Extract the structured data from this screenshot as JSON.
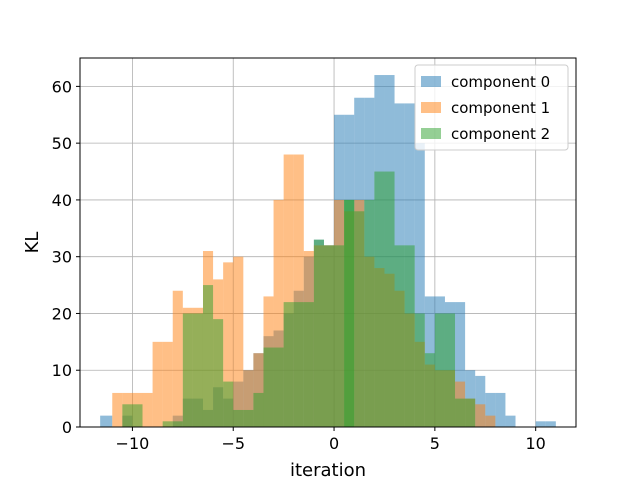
{
  "chart_data": {
    "type": "histogram",
    "xlabel": "iteration",
    "ylabel": "KL",
    "xlim": [
      -12.6,
      12.0
    ],
    "ylim": [
      0,
      65
    ],
    "xticks": [
      -10,
      -5,
      0,
      5,
      10
    ],
    "xtick_labels": [
      "−10",
      "−5",
      "0",
      "5",
      "10"
    ],
    "yticks": [
      0,
      10,
      20,
      30,
      40,
      50,
      60
    ],
    "ytick_labels": [
      "0",
      "10",
      "20",
      "30",
      "40",
      "50",
      "60"
    ],
    "grid": true,
    "legend_position": "top-right",
    "series": [
      {
        "name": "component 0",
        "color": "#1f77b4",
        "alpha": 0.5,
        "bins": [
          [
            -11.6,
            -11.0,
            2
          ],
          [
            -11.0,
            -10.5,
            0
          ],
          [
            -10.5,
            -10.0,
            2
          ],
          [
            -10.0,
            -9.5,
            0
          ],
          [
            -9.5,
            -9.0,
            0
          ],
          [
            -9.0,
            -8.5,
            0
          ],
          [
            -8.5,
            -8.0,
            0
          ],
          [
            -8.0,
            -7.5,
            2
          ],
          [
            -7.5,
            -7.0,
            5
          ],
          [
            -7.0,
            -6.5,
            5
          ],
          [
            -6.5,
            -6.0,
            3
          ],
          [
            -6.0,
            -5.5,
            7
          ],
          [
            -5.5,
            -5.0,
            5
          ],
          [
            -5.0,
            -4.5,
            8
          ],
          [
            -4.5,
            -4.0,
            10
          ],
          [
            -4.0,
            -3.5,
            13
          ],
          [
            -3.5,
            -3.0,
            16
          ],
          [
            -3.0,
            -2.5,
            17
          ],
          [
            -2.5,
            -2.0,
            20
          ],
          [
            -2.0,
            -1.5,
            24
          ],
          [
            -1.5,
            -1.0,
            30
          ],
          [
            -1.0,
            -0.5,
            33
          ],
          [
            -0.5,
            0.0,
            32
          ],
          [
            0.0,
            0.5,
            55
          ],
          [
            0.5,
            1.0,
            55
          ],
          [
            1.0,
            1.5,
            58
          ],
          [
            1.5,
            2.0,
            58
          ],
          [
            2.0,
            2.5,
            62
          ],
          [
            2.5,
            3.0,
            62
          ],
          [
            3.0,
            3.5,
            57
          ],
          [
            3.5,
            4.0,
            57
          ],
          [
            4.0,
            4.5,
            50
          ],
          [
            4.5,
            5.0,
            23
          ],
          [
            5.0,
            5.5,
            23
          ],
          [
            5.5,
            6.0,
            22
          ],
          [
            6.0,
            6.5,
            22
          ],
          [
            6.5,
            7.0,
            10
          ],
          [
            7.0,
            7.5,
            9
          ],
          [
            7.5,
            8.0,
            6
          ],
          [
            8.0,
            8.5,
            6
          ],
          [
            8.5,
            9.0,
            2
          ],
          [
            9.0,
            9.5,
            0
          ],
          [
            9.5,
            10.0,
            0
          ],
          [
            10.0,
            10.5,
            1
          ],
          [
            10.5,
            11.0,
            1
          ]
        ]
      },
      {
        "name": "component 1",
        "color": "#ff7f0e",
        "alpha": 0.5,
        "bins": [
          [
            -11.0,
            -10.5,
            6
          ],
          [
            -10.5,
            -10.0,
            6
          ],
          [
            -10.0,
            -9.5,
            6
          ],
          [
            -9.5,
            -9.0,
            6
          ],
          [
            -9.0,
            -8.5,
            15
          ],
          [
            -8.5,
            -8.0,
            15
          ],
          [
            -8.0,
            -7.5,
            24
          ],
          [
            -7.5,
            -7.0,
            21
          ],
          [
            -7.0,
            -6.5,
            21
          ],
          [
            -6.5,
            -6.0,
            31
          ],
          [
            -6.0,
            -5.5,
            26
          ],
          [
            -5.5,
            -5.0,
            29
          ],
          [
            -5.0,
            -4.5,
            30
          ],
          [
            -4.5,
            -4.0,
            10
          ],
          [
            -4.0,
            -3.5,
            13
          ],
          [
            -3.5,
            -3.0,
            23
          ],
          [
            -3.0,
            -2.5,
            40
          ],
          [
            -2.5,
            -2.0,
            48
          ],
          [
            -2.0,
            -1.5,
            48
          ],
          [
            -1.5,
            -1.0,
            31
          ],
          [
            -1.0,
            -0.5,
            32
          ],
          [
            -0.5,
            0.0,
            32
          ],
          [
            0.0,
            0.5,
            40
          ],
          [
            0.5,
            1.0,
            38
          ],
          [
            1.0,
            1.5,
            40
          ],
          [
            1.5,
            2.0,
            30
          ],
          [
            2.0,
            2.5,
            28
          ],
          [
            2.5,
            3.0,
            27
          ],
          [
            3.0,
            3.5,
            24
          ],
          [
            3.5,
            4.0,
            20
          ],
          [
            4.0,
            4.5,
            15
          ],
          [
            4.5,
            5.0,
            11
          ],
          [
            5.0,
            5.5,
            10
          ],
          [
            5.5,
            6.0,
            10
          ],
          [
            6.0,
            6.5,
            8
          ],
          [
            6.5,
            7.0,
            5
          ],
          [
            7.0,
            7.5,
            4
          ],
          [
            7.5,
            8.0,
            2
          ]
        ]
      },
      {
        "name": "component 2",
        "color": "#2ca02c",
        "alpha": 0.5,
        "bins": [
          [
            -10.5,
            -10.0,
            4
          ],
          [
            -10.0,
            -9.5,
            4
          ],
          [
            -9.5,
            -9.0,
            0
          ],
          [
            -9.0,
            -8.5,
            0
          ],
          [
            -8.5,
            -8.0,
            1
          ],
          [
            -8.0,
            -7.5,
            1
          ],
          [
            -7.5,
            -7.0,
            20
          ],
          [
            -7.0,
            -6.5,
            20
          ],
          [
            -6.5,
            -6.0,
            25
          ],
          [
            -6.0,
            -5.5,
            19
          ],
          [
            -5.5,
            -5.0,
            8
          ],
          [
            -5.0,
            -4.5,
            3
          ],
          [
            -4.5,
            -4.0,
            3
          ],
          [
            -4.0,
            -3.5,
            6
          ],
          [
            -3.5,
            -3.0,
            14
          ],
          [
            -3.0,
            -2.5,
            14
          ],
          [
            -2.5,
            -2.0,
            22
          ],
          [
            -2.0,
            -1.5,
            22
          ],
          [
            -1.5,
            -1.0,
            22
          ],
          [
            -1.0,
            -0.5,
            33
          ],
          [
            -0.5,
            0.0,
            32
          ],
          [
            0.0,
            0.5,
            32
          ],
          [
            0.5,
            1.0,
            40
          ],
          [
            0.5,
            1.0,
            40
          ],
          [
            1.0,
            1.5,
            38
          ],
          [
            1.5,
            2.0,
            40
          ],
          [
            2.0,
            2.5,
            45
          ],
          [
            2.5,
            3.0,
            45
          ],
          [
            3.0,
            3.5,
            32
          ],
          [
            3.5,
            4.0,
            32
          ],
          [
            4.0,
            4.5,
            20
          ],
          [
            4.5,
            5.0,
            13
          ],
          [
            5.0,
            5.5,
            20
          ],
          [
            5.5,
            6.0,
            20
          ],
          [
            6.0,
            6.5,
            5
          ],
          [
            6.5,
            7.0,
            5
          ]
        ]
      }
    ]
  }
}
